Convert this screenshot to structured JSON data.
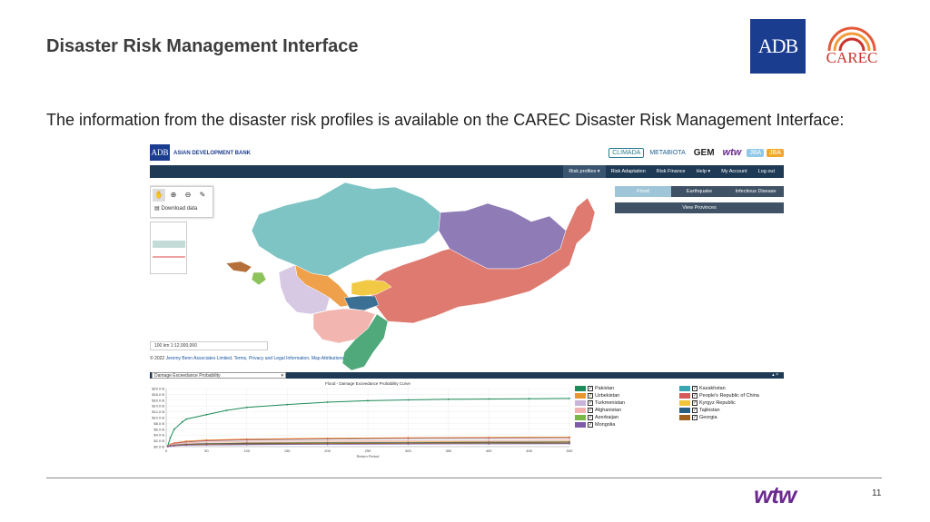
{
  "slide": {
    "title": "Disaster Risk Management Interface",
    "body": "The information from the disaster risk profiles is available on the CAREC Disaster Risk Management Interface:",
    "page_number": "11",
    "logos": {
      "adb": "ADB",
      "carec": "CAREC",
      "wtw": "wtw"
    }
  },
  "app": {
    "adb_badge": "ADB",
    "brand": "ASIAN DEVELOPMENT BANK",
    "partners": [
      "CLIMADA",
      "METABIOTA",
      "GEM",
      "wtw",
      "JBA",
      "JBA"
    ],
    "nav": [
      "Risk profiles ▾",
      "Risk Adaptation",
      "Risk Finance",
      "Help ▾",
      "My Account",
      "Log out"
    ],
    "tools": {
      "download": "Download data"
    },
    "scale": "100 km  1:12,000,000",
    "attribution": {
      "prefix": "© 2022",
      "links": [
        "Jeremy Benn Associates Limited",
        "Terms, Privacy and Legal Information",
        "Map Attributions"
      ]
    },
    "hazard_tabs": [
      "Flood",
      "Earthquake",
      "Infectious Disease"
    ],
    "view_provinces": "View Provinces",
    "panel_select": "Damage Exceedance Probability",
    "panel_controls": "▴ ×"
  },
  "chart_data": {
    "type": "line",
    "title": "Flood - Damage Exceedance Probability Curve",
    "xlabel": "Return Period",
    "ylabel": "",
    "x_ticks": [
      "0",
      "50",
      "100",
      "150",
      "200",
      "250",
      "300",
      "350",
      "400",
      "450",
      "500"
    ],
    "y_ticks": [
      "$0.0 B",
      "$2.0 B",
      "$4.0 B",
      "$6.0 B",
      "$8.0 B",
      "$10.0 B",
      "$12.0 B",
      "$14.0 B",
      "$16.0 B",
      "$18.0 B",
      "$20.0 B"
    ],
    "xlim": [
      0,
      500
    ],
    "ylim": [
      0,
      20
    ],
    "series": [
      {
        "name": "Pakistan",
        "color": "#1e8a5a",
        "x": [
          2,
          5,
          10,
          20,
          25,
          50,
          75,
          100,
          150,
          200,
          250,
          300,
          350,
          400,
          450,
          500
        ],
        "y": [
          0.3,
          3,
          6,
          8.5,
          9.5,
          11,
          12.5,
          13.5,
          14.5,
          15.3,
          15.8,
          16.1,
          16.3,
          16.4,
          16.5,
          16.6
        ]
      },
      {
        "name": "Kazakhstan",
        "color": "#3ba6b0",
        "x": [
          2,
          5,
          10,
          25,
          50,
          100,
          200,
          300,
          400,
          500
        ],
        "y": [
          0.1,
          0.6,
          1.1,
          1.6,
          2.0,
          2.3,
          2.6,
          2.8,
          2.9,
          3.0
        ]
      },
      {
        "name": "Uzbekistan",
        "color": "#e8962e",
        "x": [
          2,
          5,
          10,
          25,
          50,
          100,
          200,
          300,
          400,
          500
        ],
        "y": [
          0.1,
          0.8,
          1.3,
          1.9,
          2.3,
          2.6,
          2.9,
          3.1,
          3.2,
          3.3
        ]
      },
      {
        "name": "People's Republic of China",
        "color": "#d65a5a",
        "x": [
          2,
          5,
          10,
          25,
          50,
          100,
          200,
          300,
          400,
          500
        ],
        "y": [
          0.1,
          0.7,
          1.2,
          1.7,
          2.1,
          2.4,
          2.7,
          2.9,
          3.0,
          3.1
        ]
      },
      {
        "name": "Turkmenistan",
        "color": "#c8b4d8",
        "x": [
          2,
          5,
          10,
          25,
          50,
          100,
          200,
          300,
          400,
          500
        ],
        "y": [
          0.05,
          0.4,
          0.7,
          1.0,
          1.2,
          1.4,
          1.6,
          1.7,
          1.8,
          1.9
        ]
      },
      {
        "name": "Kyrgyz Republic",
        "color": "#f0c53c",
        "x": [
          2,
          5,
          10,
          25,
          50,
          100,
          200,
          300,
          400,
          500
        ],
        "y": [
          0.05,
          0.3,
          0.6,
          0.9,
          1.1,
          1.3,
          1.5,
          1.6,
          1.7,
          1.8
        ]
      },
      {
        "name": "Afghanistan",
        "color": "#f2b1b1",
        "x": [
          2,
          5,
          10,
          25,
          50,
          100,
          200,
          300,
          400,
          500
        ],
        "y": [
          0.05,
          0.5,
          0.9,
          1.3,
          1.6,
          1.8,
          2.0,
          2.1,
          2.2,
          2.3
        ]
      },
      {
        "name": "Tajikistan",
        "color": "#2b5f82",
        "x": [
          2,
          5,
          10,
          25,
          50,
          100,
          200,
          300,
          400,
          500
        ],
        "y": [
          0.04,
          0.3,
          0.5,
          0.8,
          1.0,
          1.2,
          1.3,
          1.4,
          1.5,
          1.6
        ]
      },
      {
        "name": "Azerbaijan",
        "color": "#7ab648",
        "x": [
          2,
          5,
          10,
          25,
          50,
          100,
          200,
          300,
          400,
          500
        ],
        "y": [
          0.03,
          0.2,
          0.4,
          0.6,
          0.8,
          0.9,
          1.0,
          1.1,
          1.2,
          1.2
        ]
      },
      {
        "name": "Georgia",
        "color": "#a0611f",
        "x": [
          2,
          5,
          10,
          25,
          50,
          100,
          200,
          300,
          400,
          500
        ],
        "y": [
          0.03,
          0.25,
          0.45,
          0.7,
          0.85,
          1.0,
          1.1,
          1.2,
          1.3,
          1.3
        ]
      },
      {
        "name": "Mongolia",
        "color": "#7e5ba8",
        "x": [
          2,
          5,
          10,
          25,
          50,
          100,
          200,
          300,
          400,
          500
        ],
        "y": [
          0.02,
          0.15,
          0.3,
          0.5,
          0.6,
          0.7,
          0.8,
          0.9,
          0.95,
          1.0
        ]
      }
    ]
  },
  "map_regions": [
    {
      "name": "Kazakhstan",
      "color": "#7ec4c4"
    },
    {
      "name": "Mongolia",
      "color": "#8f7bb5"
    },
    {
      "name": "People's Republic of China",
      "color": "#de7a70"
    },
    {
      "name": "Uzbekistan",
      "color": "#eea14a"
    },
    {
      "name": "Turkmenistan",
      "color": "#d7c8e3"
    },
    {
      "name": "Kyrgyz Republic",
      "color": "#f2c945"
    },
    {
      "name": "Tajikistan",
      "color": "#3b6f93"
    },
    {
      "name": "Afghanistan",
      "color": "#f3b5b0"
    },
    {
      "name": "Pakistan",
      "color": "#4fa97a"
    },
    {
      "name": "Azerbaijan",
      "color": "#8dc35b"
    },
    {
      "name": "Georgia",
      "color": "#b5703a"
    }
  ]
}
